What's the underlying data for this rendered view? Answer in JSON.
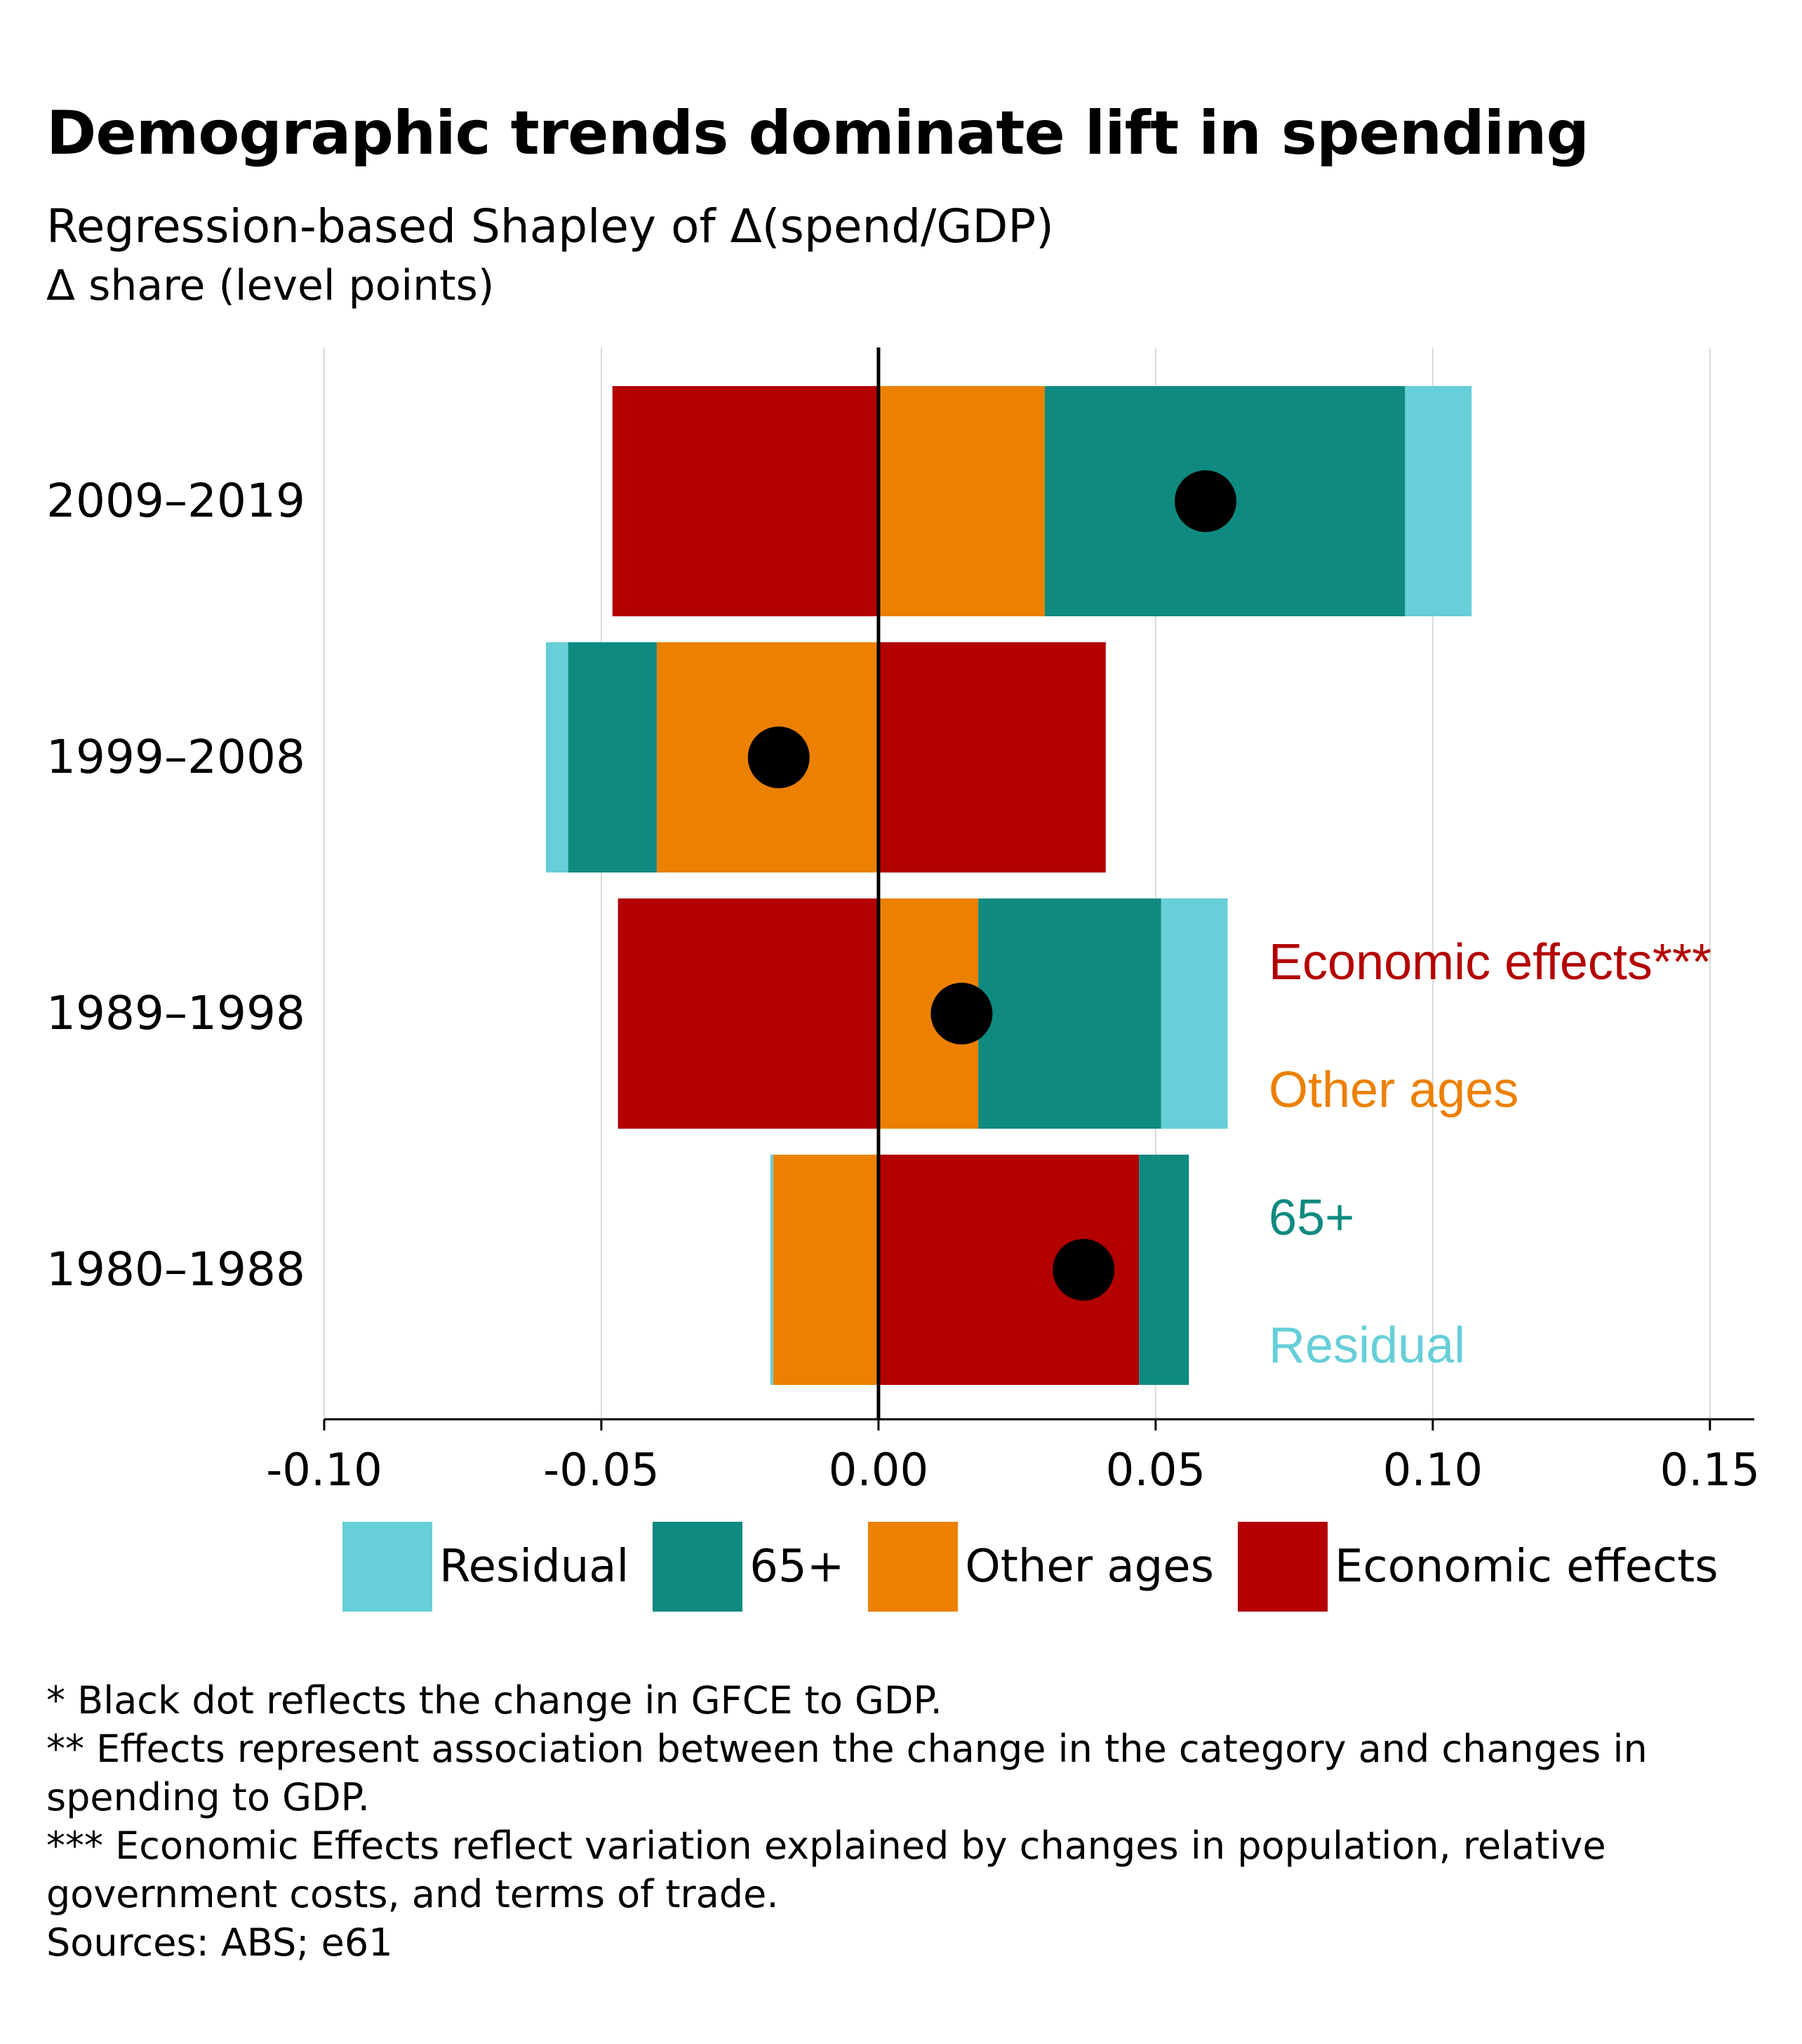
{
  "title": "Demographic trends dominate lift in spending",
  "subtitle": "Regression-based Shapley of Δ(spend/GDP)",
  "ylabel": "Δ share (level points)",
  "colors": {
    "residual": "#66CFD8",
    "age65": "#0F8A80",
    "other_ages": "#EC8000",
    "economic": "#B30000",
    "dot": "#000000",
    "grid": "#d9d9d9"
  },
  "chart_data": {
    "type": "bar",
    "orientation": "horizontal",
    "stacked": "diverging",
    "categories": [
      "2009–2019",
      "1999–2008",
      "1989–1998",
      "1980–1988"
    ],
    "series": [
      {
        "name": "Economic effects",
        "key": "economic",
        "values": [
          -0.048,
          0.041,
          -0.047,
          0.047
        ]
      },
      {
        "name": "Other ages",
        "key": "other_ages",
        "values": [
          0.03,
          -0.04,
          0.018,
          -0.019
        ]
      },
      {
        "name": "65+",
        "key": "age65",
        "values": [
          0.065,
          -0.016,
          0.033,
          0.009
        ]
      },
      {
        "name": "Residual",
        "key": "residual",
        "values": [
          0.012,
          -0.004,
          0.012,
          -0.0005
        ]
      }
    ],
    "dot_values": [
      0.059,
      -0.018,
      0.015,
      0.037
    ],
    "xlim": [
      -0.1,
      0.158
    ],
    "xticks": [
      -0.1,
      -0.05,
      0.0,
      0.05,
      0.1,
      0.15
    ],
    "xtick_labels": [
      "-0.10",
      "-0.05",
      "0.00",
      "0.05",
      "0.10",
      "0.15"
    ],
    "grid": true,
    "inline_labels": [
      {
        "text": "Economic effects***",
        "key": "economic"
      },
      {
        "text": "Other ages",
        "key": "other_ages"
      },
      {
        "text": "65+",
        "key": "age65"
      },
      {
        "text": "Residual",
        "key": "residual"
      }
    ]
  },
  "legend": [
    {
      "label": "Residual",
      "key": "residual"
    },
    {
      "label": "65+",
      "key": "age65"
    },
    {
      "label": "Other ages",
      "key": "other_ages"
    },
    {
      "label": "Economic effects",
      "key": "economic"
    }
  ],
  "notes": [
    "* Black dot reflects the change in GFCE to GDP.",
    "** Effects represent association between the change in the category and changes in spending to GDP.",
    "*** Economic Effects reflect variation explained by changes in population, relative government costs, and terms of trade.",
    "Sources: ABS; e61"
  ]
}
